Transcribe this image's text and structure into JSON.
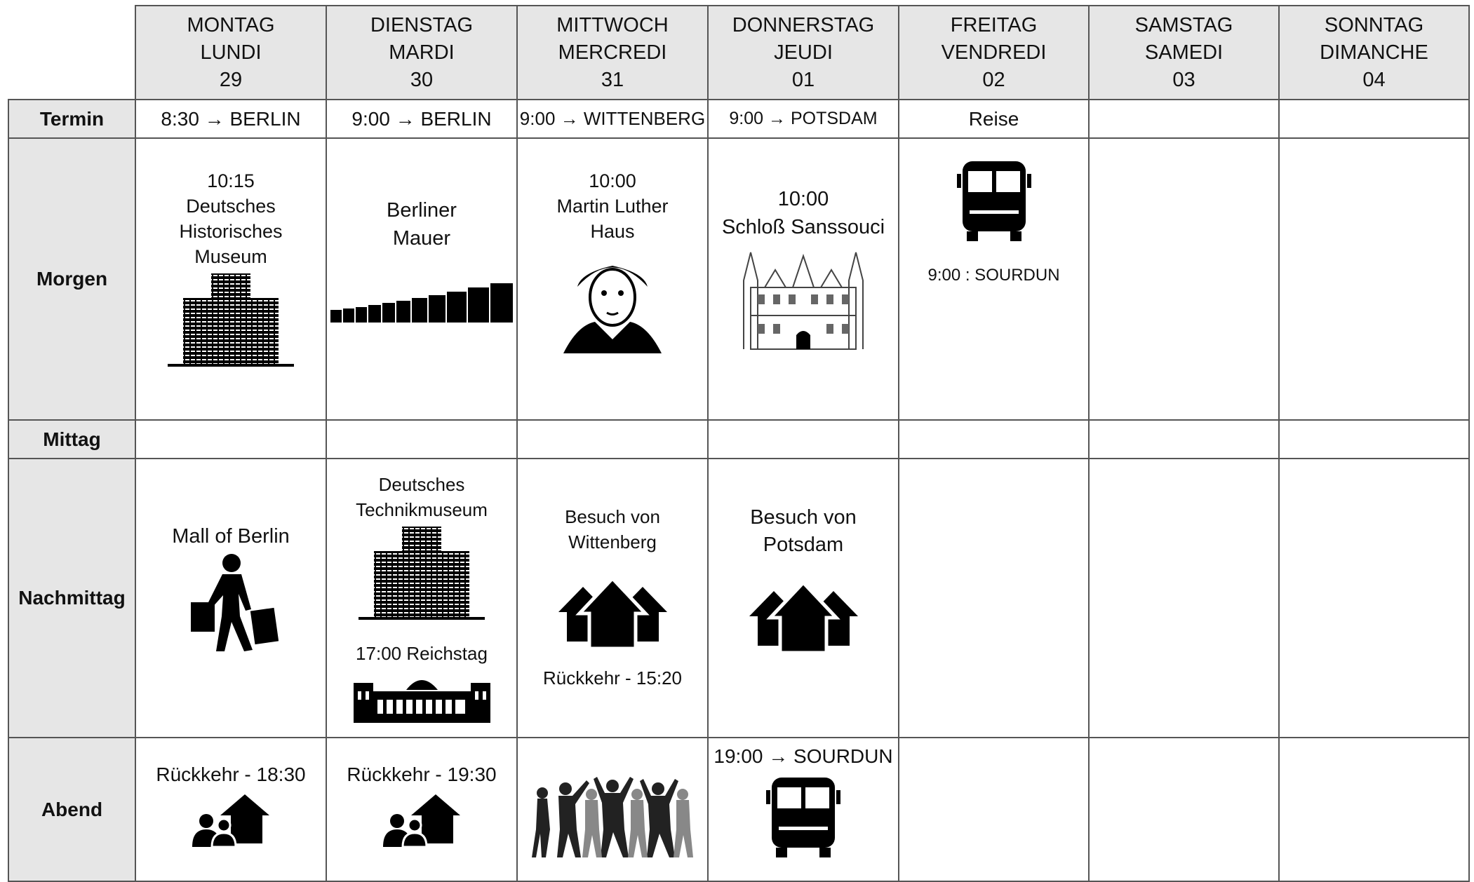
{
  "days": [
    {
      "de": "MONTAG",
      "fr": "LUNDI",
      "date": "29"
    },
    {
      "de": "DIENSTAG",
      "fr": "MARDI",
      "date": "30"
    },
    {
      "de": "MITTWOCH",
      "fr": "MERCREDI",
      "date": "31"
    },
    {
      "de": "DONNERSTAG",
      "fr": "JEUDI",
      "date": "01"
    },
    {
      "de": "FREITAG",
      "fr": "VENDREDI",
      "date": "02"
    },
    {
      "de": "SAMSTAG",
      "fr": "SAMEDI",
      "date": "03"
    },
    {
      "de": "SONNTAG",
      "fr": "DIMANCHE",
      "date": "04"
    }
  ],
  "rows": [
    {
      "label": "Termin",
      "cells": [
        [
          "8:30 → BERLIN"
        ],
        [
          "9:00 → BERLIN"
        ],
        [
          "9:00 → WITTENBERG"
        ],
        [
          "9:00 → POTSDAM"
        ],
        [
          "Reise"
        ],
        [],
        []
      ]
    },
    {
      "label": "Morgen",
      "cells": [
        [
          "10:15",
          "Deutsches",
          "Historisches",
          "Museum"
        ],
        [
          "Berliner",
          "Mauer"
        ],
        [
          "10:00",
          "Martin Luther",
          "Haus"
        ],
        [
          "10:00",
          "Schloß Sanssouci"
        ],
        [
          "9:00 : SOURDUN"
        ],
        [],
        []
      ]
    },
    {
      "label": "Mittag",
      "cells": [
        [],
        [],
        [],
        [],
        [],
        [],
        []
      ]
    },
    {
      "label": "Nachmittag",
      "cells": [
        [
          "Mall of Berlin"
        ],
        [
          "Deutsches",
          "Technikmuseum",
          "17:00 Reichstag"
        ],
        [
          "Besuch von",
          "Wittenberg",
          "Rückkehr  - 15:20"
        ],
        [
          "Besuch von",
          "Potsdam"
        ],
        [],
        [],
        []
      ]
    },
    {
      "label": "Abend",
      "cells": [
        [
          "Rückkehr  - 18:30"
        ],
        [
          "Rückkehr  - 19:30"
        ],
        [],
        [
          "19:00 → SOURDUN"
        ],
        [],
        [],
        []
      ]
    }
  ]
}
